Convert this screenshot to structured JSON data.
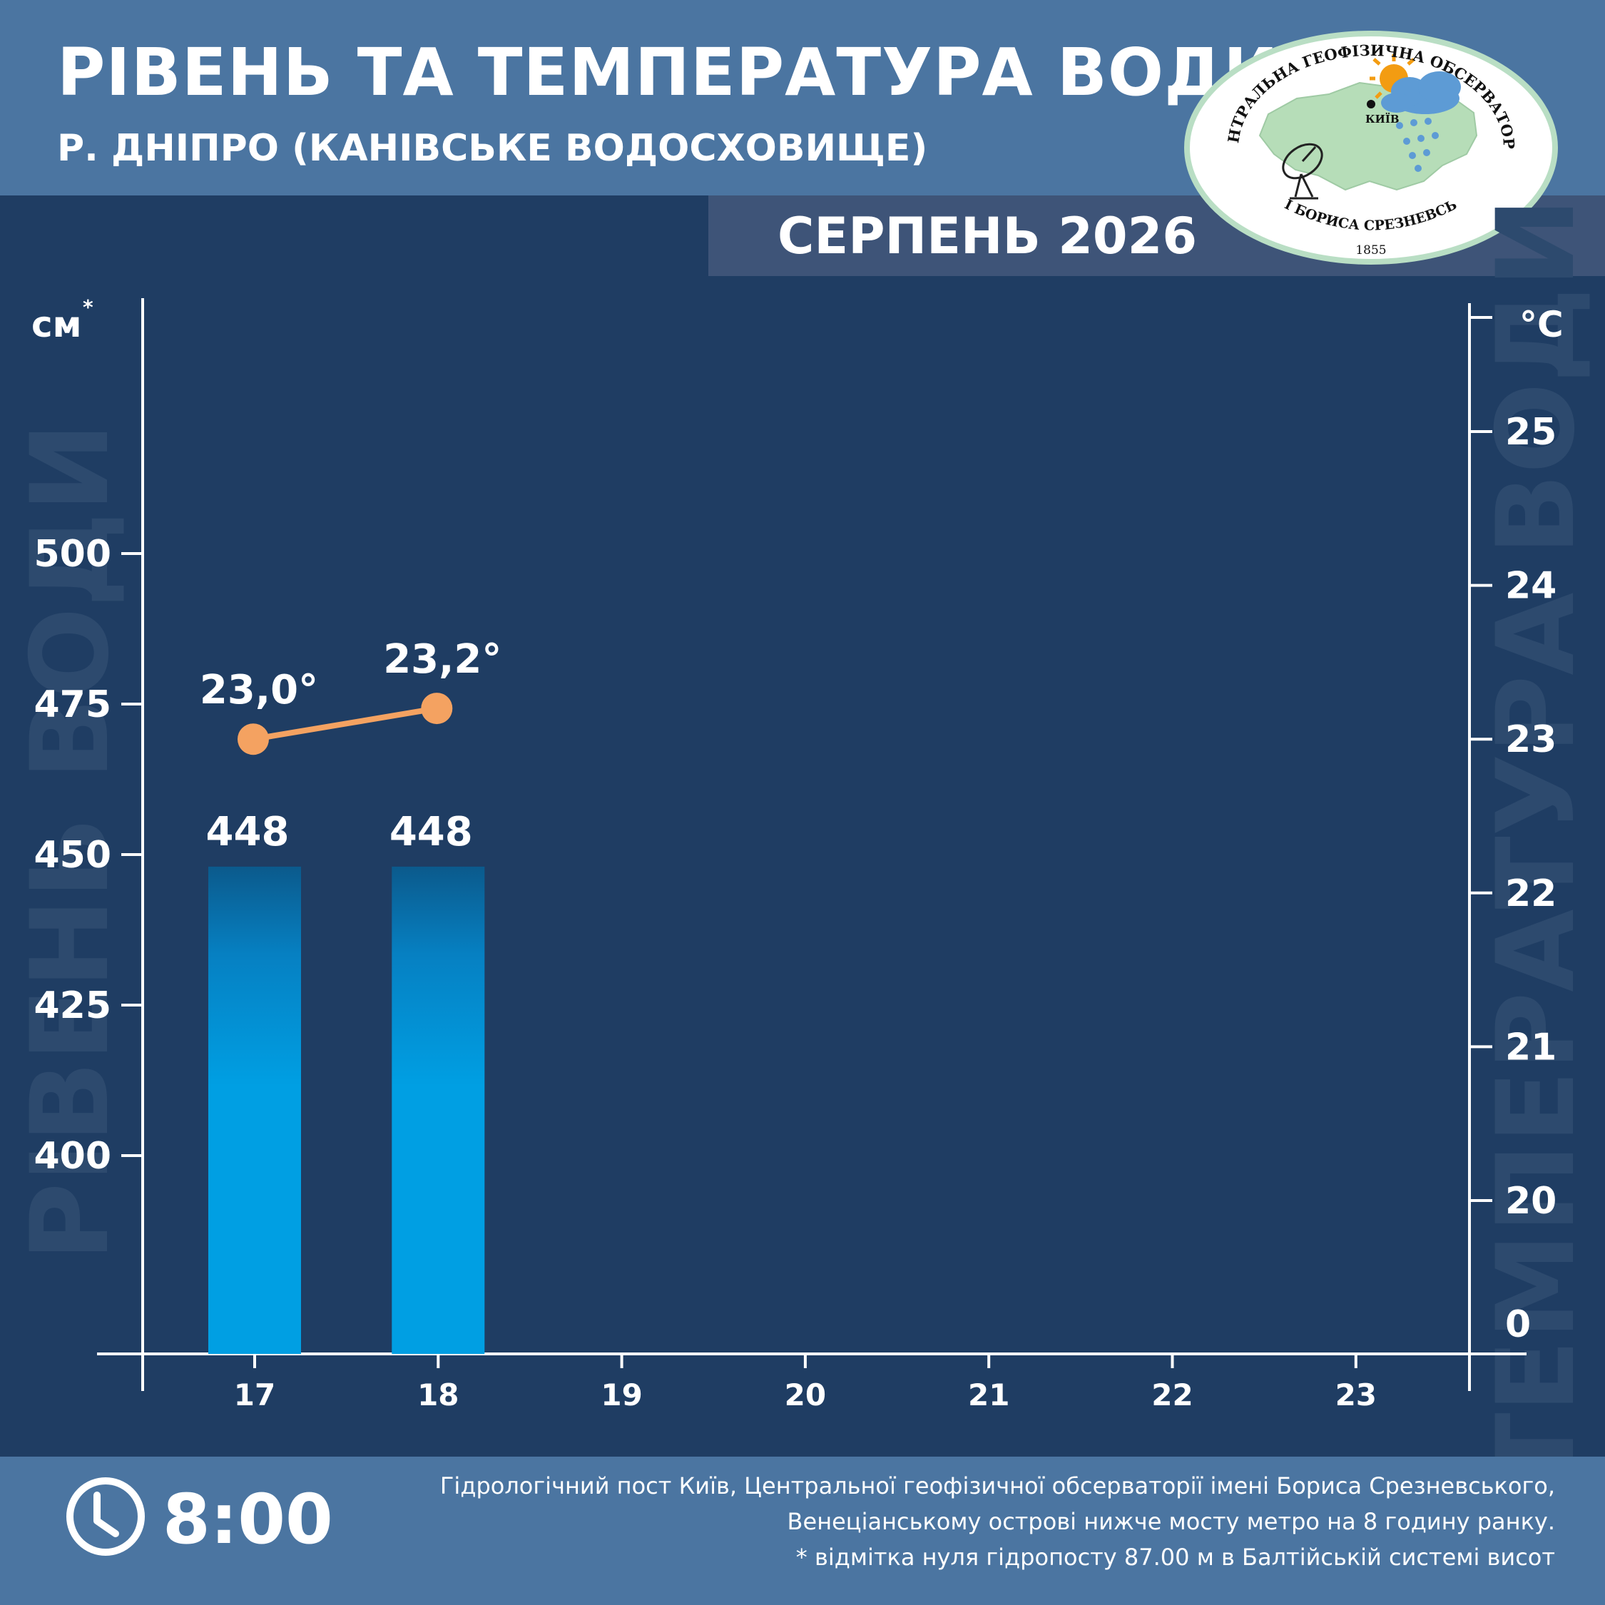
{
  "header": {
    "title": "РІВЕНЬ ТА ТЕМПЕРАТУРА ВОДИ",
    "subtitle": "Р. ДНІПРО (КАНІВСЬКЕ ВОДОСХОВИЩЕ)",
    "month": "СЕРПЕНЬ 2026"
  },
  "logo": {
    "name_top": "ЦЕНТРАЛЬНА ГЕОФІЗИЧНА ОБСЕРВАТОРІЯ",
    "name_bottom": "ІМЕНІ БОРИСА СРЕЗНЕВСЬКОГО",
    "year": "1855",
    "city": "КИЇВ"
  },
  "footer": {
    "time": "8:00",
    "note_line1": "Гідрологічний пост Київ, Центральної геофізичної обсерваторії імені Бориса Срезневського,",
    "note_line2": "Венеціанському острові нижче мосту метро  на 8 годину ранку.",
    "note_line3": "* відмітка нуля гідропосту 87.00 м в Балтійській системі висот"
  },
  "chart_data": {
    "type": "bar",
    "categories": [
      "17",
      "18",
      "19",
      "20",
      "21",
      "22",
      "23"
    ],
    "level": {
      "values": [
        448,
        448,
        null,
        null,
        null,
        null,
        null
      ],
      "labels": [
        "448",
        "448"
      ],
      "unit": "см",
      "unit_mark": "*",
      "axis_title": "РІВЕНЬ ВОДИ",
      "ticks": [
        400,
        425,
        450,
        475,
        500
      ],
      "tick_labels": [
        "400",
        "425",
        "450",
        "475",
        "500"
      ]
    },
    "temperature": {
      "values": [
        23.0,
        23.2,
        null,
        null,
        null,
        null,
        null
      ],
      "labels": [
        "23,0°",
        "23,2°"
      ],
      "unit": "°C",
      "axis_title": "ТЕМПЕРАТУРА ВОДИ",
      "ticks": [
        20,
        21,
        22,
        23,
        24,
        25
      ],
      "tick_labels": [
        "20",
        "21",
        "22",
        "23",
        "24",
        "25"
      ],
      "bottom_label": "0"
    },
    "colors": {
      "background": "#1f3d63",
      "bar_top": "#0b5a8c",
      "bar_bottom": "#009fe3",
      "temperature_line": "#f4a261"
    }
  }
}
